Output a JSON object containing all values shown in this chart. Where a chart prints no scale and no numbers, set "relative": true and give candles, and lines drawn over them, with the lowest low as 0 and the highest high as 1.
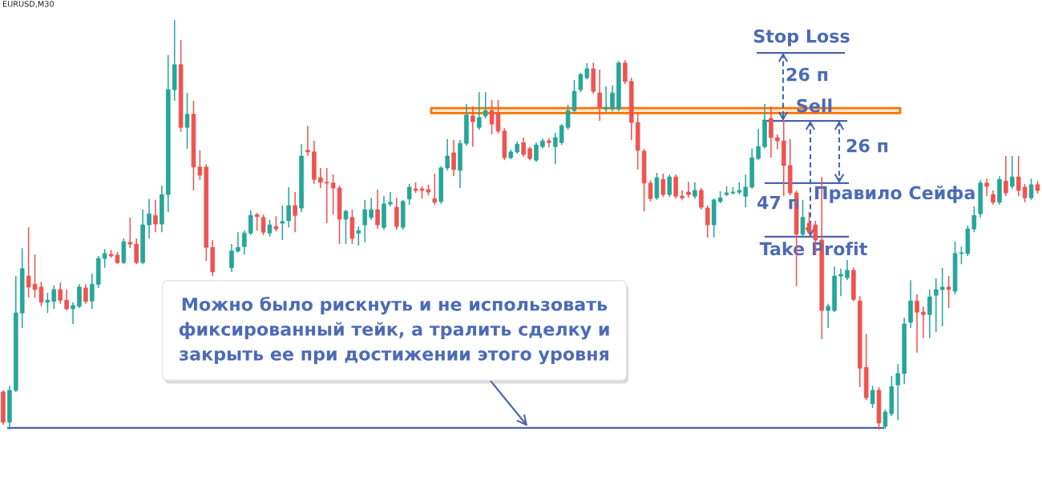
{
  "chart_data": {
    "type": "candlestick",
    "title": "EURUSD,M30",
    "relative": true,
    "categories": [
      null,
      null,
      null,
      null,
      null,
      null,
      null,
      null,
      null,
      null,
      null,
      null,
      null,
      null,
      null,
      null,
      null,
      null,
      null,
      null,
      null,
      null,
      null,
      null,
      null,
      null,
      null,
      null,
      null,
      null,
      null,
      null,
      null,
      null,
      null,
      null,
      null,
      null,
      null,
      null,
      null,
      null,
      null,
      null,
      null,
      null,
      null,
      null,
      null,
      null,
      null,
      null,
      null,
      null,
      null,
      null,
      null,
      null,
      null,
      null,
      null,
      null,
      null,
      null,
      null,
      null,
      null,
      null,
      null,
      null,
      null,
      null,
      null,
      null,
      null,
      null,
      null,
      null,
      null,
      null,
      null,
      null,
      null,
      null,
      null,
      null,
      null,
      null,
      null,
      null,
      null,
      null,
      null,
      null,
      null,
      null,
      null,
      null,
      null,
      null,
      null,
      null,
      null,
      null,
      null,
      null,
      null,
      null,
      null,
      null,
      null,
      null,
      null,
      null,
      null,
      null,
      null,
      null,
      null,
      null,
      null,
      null,
      null,
      null,
      null,
      null,
      null,
      null,
      null,
      null,
      null,
      null,
      null,
      null,
      null,
      null,
      null,
      null,
      null,
      null,
      null,
      null,
      null,
      null,
      null,
      null,
      null,
      null,
      null,
      null,
      null,
      null,
      null,
      null,
      null,
      null,
      null,
      null,
      null,
      null,
      null,
      null,
      null,
      null
    ],
    "ohlc": [
      [
        0.092,
        0.096,
        0.012,
        0.018
      ],
      [
        0.018,
        0.107,
        0,
        0.096
      ],
      [
        0.096,
        0.375,
        0.092,
        0.285
      ],
      [
        0.285,
        0.443,
        0.248,
        0.393
      ],
      [
        0.375,
        0.494,
        0.322,
        0.348
      ],
      [
        0.355,
        0.428,
        0.322,
        0.342
      ],
      [
        0.348,
        0.361,
        0.301,
        0.311
      ],
      [
        0.311,
        0.334,
        0.285,
        0.316
      ],
      [
        0.313,
        0.352,
        0.295,
        0.342
      ],
      [
        0.342,
        0.359,
        0.307,
        0.316
      ],
      [
        0.316,
        0.342,
        0.291,
        0.295
      ],
      [
        0.295,
        0.311,
        0.258,
        0.303
      ],
      [
        0.301,
        0.355,
        0.297,
        0.348
      ],
      [
        0.346,
        0.355,
        0.307,
        0.313
      ],
      [
        0.314,
        0.381,
        0.295,
        0.355
      ],
      [
        0.355,
        0.424,
        0.346,
        0.418
      ],
      [
        0.418,
        0.441,
        0.395,
        0.43
      ],
      [
        0.428,
        0.439,
        0.42,
        0.424
      ],
      [
        0.426,
        0.434,
        0.404,
        0.408
      ],
      [
        0.408,
        0.467,
        0.404,
        0.459
      ],
      [
        0.457,
        0.518,
        0.443,
        0.453
      ],
      [
        0.453,
        0.467,
        0.404,
        0.408
      ],
      [
        0.408,
        0.537,
        0.404,
        0.5
      ],
      [
        0.5,
        0.563,
        0.467,
        0.527
      ],
      [
        0.523,
        0.561,
        0.482,
        0.502
      ],
      [
        0.502,
        0.596,
        0.482,
        0.574
      ],
      [
        0.574,
        0.914,
        0.531,
        0.83
      ],
      [
        0.83,
        1,
        0.803,
        0.891
      ],
      [
        0.891,
        0.951,
        0.727,
        0.738
      ],
      [
        0.738,
        0.822,
        0.686,
        0.77
      ],
      [
        0.77,
        0.803,
        0.584,
        0.641
      ],
      [
        0.641,
        0.682,
        0.609,
        0.621
      ],
      [
        0.641,
        0.648,
        0.412,
        0.445
      ],
      [
        0.445,
        0.463,
        0.375,
        0.385
      ],
      null,
      null,
      [
        0.395,
        0.453,
        0.385,
        0.436
      ],
      [
        0.436,
        0.482,
        0.432,
        0.445
      ],
      [
        0.447,
        0.486,
        0.428,
        0.48
      ],
      [
        0.48,
        0.535,
        0.475,
        0.523
      ],
      [
        0.525,
        0.529,
        0.486,
        0.52
      ],
      [
        0.518,
        0.525,
        0.475,
        0.482
      ],
      [
        0.48,
        0.512,
        0.471,
        0.5
      ],
      [
        0.496,
        0.521,
        0.484,
        0.49
      ],
      [
        0.504,
        0.547,
        0.463,
        0.508
      ],
      [
        0.51,
        0.592,
        0.494,
        0.547
      ],
      [
        0.547,
        0.58,
        0.482,
        0.523
      ],
      [
        0.541,
        0.697,
        0.531,
        0.668
      ],
      [
        0.682,
        0.742,
        0.668,
        0.678
      ],
      [
        0.678,
        0.705,
        0.6,
        0.611
      ],
      [
        0.615,
        0.639,
        0.59,
        0.604
      ],
      [
        0.604,
        0.639,
        0.504,
        0.602
      ],
      [
        0.602,
        0.623,
        0.525,
        0.59
      ],
      [
        0.59,
        0.596,
        0.453,
        0.514
      ],
      [
        0.514,
        0.537,
        0.453,
        0.533
      ],
      [
        0.518,
        0.537,
        0.453,
        0.467
      ],
      [
        0.48,
        0.496,
        0.449,
        0.486
      ],
      [
        0.5,
        0.561,
        0.457,
        0.537
      ],
      [
        0.518,
        0.566,
        0.512,
        0.537
      ],
      [
        0.537,
        0.586,
        0.49,
        0.5
      ],
      [
        0.494,
        0.57,
        0.488,
        0.551
      ],
      [
        0.551,
        0.58,
        0.545,
        0.555
      ],
      [
        0.543,
        0.566,
        0.488,
        0.496
      ],
      [
        0.494,
        0.561,
        0.488,
        0.557
      ],
      [
        0.563,
        0.6,
        0.549,
        0.592
      ],
      [
        0.588,
        0.604,
        0.578,
        0.584
      ],
      [
        0.588,
        0.594,
        0.564,
        0.584
      ],
      [
        0.586,
        0.598,
        0.572,
        0.58
      ],
      [
        0.564,
        0.625,
        0.549,
        0.555
      ],
      [
        0.557,
        0.643,
        0.551,
        0.639
      ],
      [
        0.639,
        0.709,
        0.633,
        0.668
      ],
      [
        0.676,
        0.707,
        0.619,
        0.635
      ],
      [
        0.633,
        0.707,
        0.59,
        0.699
      ],
      [
        0.699,
        0.795,
        0.693,
        0.768
      ],
      [
        0.766,
        0.789,
        0.691,
        0.752
      ],
      [
        0.738,
        0.824,
        0.732,
        0.762
      ],
      [
        0.766,
        0.824,
        0.76,
        0.779
      ],
      [
        0.779,
        0.805,
        0.721,
        0.746
      ],
      [
        0.773,
        0.805,
        0.723,
        0.729
      ],
      [
        0.729,
        0.736,
        0.658,
        0.664
      ],
      [
        0.664,
        0.684,
        0.66,
        0.678
      ],
      [
        0.678,
        0.703,
        0.674,
        0.697
      ],
      [
        0.701,
        0.713,
        0.666,
        0.672
      ],
      [
        0.686,
        0.691,
        0.658,
        0.662
      ],
      [
        0.658,
        0.701,
        0.654,
        0.695
      ],
      [
        0.691,
        0.711,
        0.686,
        0.705
      ],
      [
        0.705,
        0.711,
        0.689,
        0.701
      ],
      [
        0.691,
        0.725,
        0.648,
        0.713
      ],
      [
        0.701,
        0.746,
        0.695,
        0.742
      ],
      [
        0.738,
        0.793,
        0.732,
        0.779
      ],
      [
        0.779,
        0.854,
        0.773,
        0.826
      ],
      [
        0.83,
        0.871,
        0.824,
        0.867
      ],
      [
        0.859,
        0.895,
        0.855,
        0.881
      ],
      [
        0.881,
        0.896,
        0.82,
        0.826
      ],
      [
        0.822,
        0.879,
        0.754,
        0.787
      ],
      [
        0.783,
        0.838,
        0.775,
        0.787
      ],
      [
        0.783,
        0.84,
        0.777,
        0.822
      ],
      [
        0.783,
        0.9,
        0.777,
        0.895
      ],
      [
        0.895,
        0.902,
        0.844,
        0.85
      ],
      [
        0.85,
        0.859,
        0.707,
        0.75
      ],
      [
        0.75,
        0.775,
        0.635,
        0.682
      ],
      [
        0.68,
        0.686,
        0.533,
        0.602
      ],
      [
        0.602,
        0.609,
        0.557,
        0.564
      ],
      [
        0.566,
        0.627,
        0.561,
        0.615
      ],
      [
        0.611,
        0.625,
        0.568,
        0.574
      ],
      [
        0.574,
        0.623,
        0.568,
        0.617
      ],
      [
        0.617,
        0.623,
        0.564,
        0.57
      ],
      [
        0.57,
        0.584,
        0.561,
        0.566
      ],
      [
        0.58,
        0.605,
        0.566,
        0.574
      ],
      [
        0.57,
        0.604,
        0.564,
        0.584
      ],
      [
        0.584,
        0.59,
        0.537,
        0.543
      ],
      [
        0.541,
        0.547,
        0.469,
        0.5
      ],
      [
        0.5,
        0.564,
        0.469,
        0.561
      ],
      [
        0.557,
        0.582,
        0.553,
        0.566
      ],
      [
        0.574,
        0.594,
        0.57,
        0.578
      ],
      [
        0.578,
        0.592,
        0.574,
        0.58
      ],
      [
        0.58,
        0.604,
        0.574,
        0.584
      ],
      [
        0.57,
        0.623,
        0.543,
        0.592
      ],
      [
        0.592,
        0.686,
        0.588,
        0.664
      ],
      [
        0.662,
        0.734,
        0.658,
        0.691
      ],
      [
        0.691,
        0.795,
        0.686,
        0.756
      ],
      [
        0.76,
        0.789,
        0.664,
        0.713
      ],
      [
        0.713,
        0.721,
        0.684,
        0.705
      ],
      [
        0.705,
        0.756,
        0.57,
        0.645
      ],
      [
        0.645,
        0.709,
        0.572,
        0.578
      ],
      [
        0.578,
        0.584,
        0.35,
        0.477
      ],
      [
        0.477,
        0.561,
        0.471,
        0.518
      ],
      [
        0.504,
        0.531,
        0.477,
        0.482
      ],
      [
        0.5,
        0.51,
        0.428,
        0.463
      ],
      [
        0.463,
        0.617,
        0.221,
        0.291
      ],
      [
        0.291,
        0.307,
        0.248,
        0.301
      ],
      [
        0.291,
        0.398,
        0.287,
        0.375
      ],
      [
        0.375,
        0.393,
        0.326,
        0.379
      ],
      [
        0.371,
        0.414,
        0.365,
        0.389
      ],
      [
        0.389,
        0.396,
        0.313,
        0.318
      ],
      [
        0.314,
        0.326,
        0.104,
        0.15
      ],
      [
        0.152,
        0.234,
        0.072,
        0.078
      ],
      [
        0.063,
        0.107,
        0.053,
        0.096
      ],
      [
        0.096,
        0.104,
        0,
        0.016
      ],
      [
        0.008,
        0.049,
        0.002,
        0.043
      ],
      [
        0.039,
        0.131,
        0.033,
        0.105
      ],
      [
        0.109,
        0.16,
        0.023,
        0.137
      ],
      [
        0.137,
        0.273,
        0.111,
        0.258
      ],
      [
        0.262,
        0.365,
        0.248,
        0.314
      ],
      [
        0.314,
        0.33,
        0.188,
        0.287
      ],
      [
        0.287,
        0.301,
        0.223,
        0.281
      ],
      [
        0.281,
        0.342,
        0.223,
        0.324
      ],
      [
        0.328,
        0.369,
        0.238,
        0.342
      ],
      [
        0.342,
        0.395,
        0.252,
        0.348
      ],
      [
        0.348,
        0.375,
        0.297,
        0.342
      ],
      [
        0.338,
        0.459,
        0.33,
        0.43
      ],
      [
        0.43,
        0.447,
        0.404,
        0.432
      ],
      [
        0.43,
        0.498,
        0.424,
        0.49
      ],
      [
        0.49,
        0.545,
        0.482,
        0.523
      ],
      [
        0.527,
        0.609,
        0.518,
        0.602
      ],
      [
        0.602,
        0.613,
        0.57,
        0.594
      ],
      [
        0.574,
        0.584,
        0.549,
        0.555
      ],
      [
        0.555,
        0.619,
        0.549,
        0.611
      ],
      [
        0.607,
        0.668,
        0.57,
        0.578
      ],
      [
        0.594,
        0.668,
        0.588,
        0.617
      ],
      [
        0.617,
        0.668,
        0.57,
        0.584
      ],
      [
        0.592,
        0.6,
        0.555,
        0.566
      ],
      [
        0.566,
        0.613,
        0.561,
        0.598
      ],
      [
        0.598,
        0.607,
        0.576,
        0.584
      ]
    ],
    "colors": [
      "#ef5350",
      "#26a69a",
      "#26a69a",
      "#26a69a",
      "#ef5350",
      "#ef5350",
      "#ef5350",
      "#26a69a",
      "#26a69a",
      "#ef5350",
      "#ef5350",
      "#26a69a",
      "#26a69a",
      "#ef5350",
      "#26a69a",
      "#26a69a",
      "#26a69a",
      "#ef5350",
      "#ef5350",
      "#26a69a",
      "#ef5350",
      "#ef5350",
      "#26a69a",
      "#26a69a",
      "#ef5350",
      "#26a69a",
      "#26a69a",
      "#26a69a",
      "#ef5350",
      "#26a69a",
      "#ef5350",
      "#ef5350",
      "#ef5350",
      "#ef5350",
      null,
      null,
      "#26a69a",
      "#26a69a",
      "#26a69a",
      "#26a69a",
      "#ef5350",
      "#ef5350",
      "#26a69a",
      "#ef5350",
      "#26a69a",
      "#26a69a",
      "#ef5350",
      "#26a69a",
      "#ef5350",
      "#ef5350",
      "#ef5350",
      "#ef5350",
      "#ef5350",
      "#ef5350",
      "#26a69a",
      "#ef5350",
      "#26a69a",
      "#26a69a",
      "#26a69a",
      "#ef5350",
      "#26a69a",
      "#26a69a",
      "#ef5350",
      "#26a69a",
      "#26a69a",
      "#ef5350",
      "#ef5350",
      "#ef5350",
      "#ef5350",
      "#26a69a",
      "#26a69a",
      "#ef5350",
      "#26a69a",
      "#26a69a",
      "#ef5350",
      "#26a69a",
      "#26a69a",
      "#ef5350",
      "#ef5350",
      "#ef5350",
      "#26a69a",
      "#26a69a",
      "#ef5350",
      "#ef5350",
      "#26a69a",
      "#26a69a",
      "#ef5350",
      "#26a69a",
      "#26a69a",
      "#26a69a",
      "#26a69a",
      "#26a69a",
      "#26a69a",
      "#ef5350",
      "#ef5350",
      "#26a69a",
      "#26a69a",
      "#26a69a",
      "#ef5350",
      "#ef5350",
      "#ef5350",
      "#ef5350",
      "#ef5350",
      "#26a69a",
      "#ef5350",
      "#26a69a",
      "#ef5350",
      "#ef5350",
      "#ef5350",
      "#26a69a",
      "#ef5350",
      "#ef5350",
      "#26a69a",
      "#26a69a",
      "#26a69a",
      "#26a69a",
      "#26a69a",
      "#26a69a",
      "#26a69a",
      "#26a69a",
      "#26a69a",
      "#ef5350",
      "#ef5350",
      "#ef5350",
      "#ef5350",
      "#ef5350",
      "#26a69a",
      "#ef5350",
      "#ef5350",
      "#ef5350",
      "#26a69a",
      "#26a69a",
      "#26a69a",
      "#26a69a",
      "#ef5350",
      "#ef5350",
      "#ef5350",
      "#26a69a",
      "#ef5350",
      "#26a69a",
      "#26a69a",
      "#26a69a",
      "#26a69a",
      "#26a69a",
      "#ef5350",
      "#ef5350",
      "#26a69a",
      "#26a69a",
      "#26a69a",
      "#ef5350",
      "#26a69a",
      "#26a69a",
      "#26a69a",
      "#26a69a",
      "#26a69a",
      "#ef5350",
      "#ef5350",
      "#26a69a",
      "#ef5350",
      "#26a69a",
      "#ef5350",
      "#ef5350",
      "#26a69a",
      "#ef5350"
    ],
    "ref_lines": [
      {
        "axis": "y",
        "value": 0.004,
        "color": "#4a63ae"
      },
      {
        "axis": "y",
        "value": 0.92,
        "label": "Stop Loss",
        "color": "#4a63ae"
      },
      {
        "axis": "y",
        "value": 0.754,
        "label": "Sell",
        "color": "#4a63ae"
      },
      {
        "axis": "y",
        "value": 0.602,
        "label": "Правило Сейфа",
        "color": "#4a63ae"
      },
      {
        "axis": "y",
        "value": 0.471,
        "label": "Take Profit",
        "color": "#4a63ae"
      }
    ],
    "bands": [
      {
        "axis": "y",
        "from": 0.773,
        "to": 0.785,
        "color": "#ff7300"
      }
    ],
    "annotations": [
      "26 п",
      "26 п",
      "47 п",
      "Можно было рискнуть и не использовать\nфиксированный тейк, а тралить сделку и\nзакрыть ее при достижении этого уровня"
    ]
  }
}
